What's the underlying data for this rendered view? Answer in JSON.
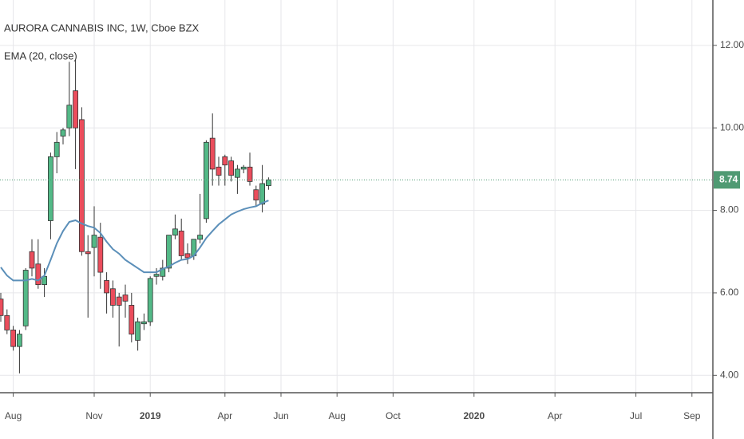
{
  "chart_data": {
    "type": "candlestick",
    "title": "AURORA CANNABIS INC, 1W, Cboe BZX",
    "indicator": {
      "name": "EMA (20, close)",
      "color": "#5b8fb9",
      "values": [
        6.62,
        6.42,
        6.3,
        6.3,
        6.3,
        6.34,
        6.3,
        6.42,
        6.8,
        7.2,
        7.5,
        7.72,
        7.76,
        7.68,
        7.62,
        7.58,
        7.45,
        7.24,
        7.06,
        6.95,
        6.8,
        6.7,
        6.6,
        6.5,
        6.5,
        6.5,
        6.58,
        6.64,
        6.73,
        6.8,
        6.82,
        6.9,
        7.1,
        7.33,
        7.5,
        7.66,
        7.78,
        7.9,
        7.97,
        8.03,
        8.07,
        8.1,
        8.18,
        8.24
      ]
    },
    "x": [
      0,
      1,
      2,
      3,
      4,
      5,
      6,
      7,
      8,
      9,
      10,
      11,
      12,
      13,
      14,
      15,
      16,
      17,
      18,
      19,
      20,
      21,
      22,
      23,
      24,
      25,
      26,
      27,
      28,
      29,
      30,
      31,
      32,
      33,
      34,
      35,
      36,
      37,
      38,
      39,
      40,
      41,
      42,
      43
    ],
    "open": [
      5.85,
      5.45,
      5.1,
      4.7,
      5.2,
      7.0,
      6.7,
      6.2,
      7.75,
      9.3,
      9.8,
      10.0,
      10.9,
      10.2,
      7.0,
      7.1,
      7.35,
      6.3,
      6.1,
      5.9,
      5.95,
      5.7,
      4.85,
      5.25,
      5.3,
      6.4,
      6.4,
      6.6,
      7.4,
      7.5,
      6.95,
      6.9,
      7.3,
      7.8,
      9.75,
      9.05,
      9.3,
      9.2,
      8.8,
      9.0,
      9.05,
      8.5,
      8.15,
      8.6
    ],
    "high": [
      6.0,
      5.6,
      5.2,
      5.1,
      6.6,
      7.3,
      7.3,
      6.6,
      9.4,
      9.9,
      10.0,
      11.6,
      11.65,
      10.5,
      7.4,
      8.1,
      7.7,
      6.5,
      6.3,
      6.0,
      6.2,
      6.0,
      5.4,
      5.5,
      6.4,
      6.6,
      6.8,
      7.4,
      7.9,
      7.8,
      7.2,
      7.3,
      8.4,
      9.7,
      10.35,
      9.3,
      9.35,
      9.3,
      9.1,
      9.1,
      9.4,
      8.6,
      9.1,
      8.8
    ],
    "low": [
      5.3,
      5.0,
      4.6,
      4.05,
      5.1,
      6.4,
      6.1,
      5.9,
      7.3,
      8.9,
      9.6,
      9.8,
      9.0,
      6.9,
      5.4,
      6.4,
      6.1,
      5.5,
      5.4,
      4.7,
      5.4,
      4.8,
      4.6,
      5.1,
      5.2,
      6.2,
      6.3,
      6.5,
      7.3,
      6.8,
      6.7,
      6.8,
      7.2,
      7.7,
      8.6,
      8.6,
      8.6,
      8.7,
      8.4,
      8.9,
      8.6,
      8.1,
      7.95,
      8.5
    ],
    "close": [
      5.45,
      5.1,
      4.7,
      5.0,
      6.55,
      6.6,
      6.2,
      6.4,
      9.3,
      9.65,
      9.95,
      10.55,
      10.0,
      7.0,
      6.95,
      7.4,
      6.5,
      6.0,
      5.7,
      5.7,
      5.8,
      5.0,
      5.3,
      5.3,
      6.35,
      6.45,
      6.6,
      7.4,
      7.55,
      6.9,
      6.85,
      7.3,
      7.4,
      9.65,
      9.0,
      8.85,
      9.1,
      8.85,
      9.0,
      9.05,
      8.7,
      8.25,
      8.65,
      8.74
    ],
    "up_color": "#53b987",
    "down_color": "#eb4d5c",
    "last_price": 8.74,
    "last_price_color": "#4f9a73",
    "xlim": [
      -0.128,
      114.36
    ],
    "xticks": [
      {
        "value": 2,
        "label": "Aug"
      },
      {
        "value": 15,
        "label": "Nov"
      },
      {
        "value": 24,
        "label": "2019"
      },
      {
        "value": 36,
        "label": "Apr"
      },
      {
        "value": 45,
        "label": "Jun"
      },
      {
        "value": 54,
        "label": "Aug"
      },
      {
        "value": 63,
        "label": "Oct"
      },
      {
        "value": 76,
        "label": "2020"
      },
      {
        "value": 89,
        "label": "Apr"
      },
      {
        "value": 102,
        "label": "Jul"
      },
      {
        "value": 111,
        "label": "Sep"
      }
    ],
    "ylim": [
      3.58,
      13.1
    ],
    "yticks": [
      {
        "value": 4,
        "label": "4.00"
      },
      {
        "value": 6,
        "label": "6.00"
      },
      {
        "value": 8,
        "label": "8.00"
      },
      {
        "value": 10,
        "label": "10.00"
      },
      {
        "value": 12,
        "label": "12.00"
      }
    ],
    "grid": true
  }
}
